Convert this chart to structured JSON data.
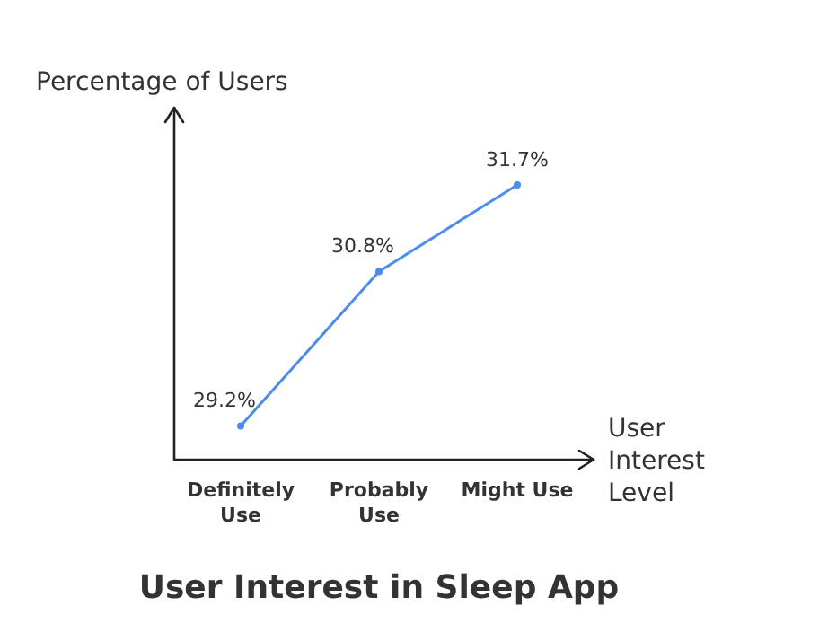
{
  "chart_data": {
    "type": "line",
    "title": "User Interest in Sleep App",
    "xlabel": "User Interest Level",
    "ylabel": "Percentage of Users",
    "categories": [
      "Definitely Use",
      "Probably Use",
      "Might Use"
    ],
    "series": [
      {
        "color": "#4a8cf7",
        "values": [
          29.2,
          30.8,
          31.7
        ],
        "value_labels": [
          "29.2%",
          "30.8%",
          "31.7%"
        ]
      }
    ],
    "ylim": [
      28.85,
      32.5
    ],
    "tick_labels": "x",
    "legend": false,
    "marker": "circle",
    "line_style": "solid"
  }
}
